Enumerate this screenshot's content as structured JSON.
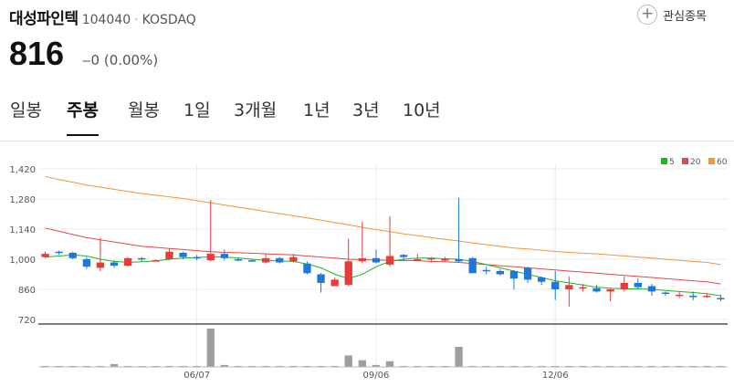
{
  "header": {
    "name": "대성파인텍",
    "code": "104040",
    "separator": "·",
    "market": "KOSDAQ",
    "favorite_label": "관심종목",
    "favorite_icon": "plus-circle-icon"
  },
  "quote": {
    "price": "816",
    "change_text": "‒0 (0.00%)"
  },
  "tabs": [
    {
      "label": "일봉",
      "active": false
    },
    {
      "label": "주봉",
      "active": true
    },
    {
      "label": "월봉",
      "active": false
    },
    {
      "label": "1일",
      "active": false
    },
    {
      "label": "3개월",
      "active": false
    },
    {
      "label": "1년",
      "active": false
    },
    {
      "label": "3년",
      "active": false
    },
    {
      "label": "10년",
      "active": false
    }
  ],
  "colors": {
    "up": "#e63c3c",
    "down": "#1e78d7",
    "ma5": "#22b522",
    "ma20": "#e64646",
    "ma60": "#f0963c",
    "volume": "#9e9e9e"
  },
  "chart_data": {
    "type": "candlestick",
    "y_ticks": [
      "1,420",
      "1,280",
      "1,140",
      "1,000",
      "860",
      "720"
    ],
    "y_tick_values": [
      1420,
      1280,
      1140,
      1000,
      860,
      720
    ],
    "ylim": [
      720,
      1420
    ],
    "x_labels": [
      "06/07",
      "09/06",
      "12/06"
    ],
    "x_label_index": [
      11,
      24,
      37
    ],
    "legend": [
      {
        "label": "5",
        "color": "#22b522"
      },
      {
        "label": "20",
        "color": "#e64646"
      },
      {
        "label": "60",
        "color": "#f0963c"
      }
    ],
    "candles": [
      [
        1010,
        1035,
        1005,
        1025
      ],
      [
        1035,
        1040,
        1020,
        1030
      ],
      [
        1030,
        1035,
        1000,
        1005
      ],
      [
        1000,
        1010,
        955,
        965
      ],
      [
        960,
        1100,
        945,
        985
      ],
      [
        985,
        995,
        960,
        970
      ],
      [
        970,
        1010,
        965,
        1005
      ],
      [
        1005,
        1010,
        990,
        1000
      ],
      [
        995,
        1000,
        990,
        995
      ],
      [
        1000,
        1050,
        995,
        1035
      ],
      [
        1030,
        1035,
        1000,
        1010
      ],
      [
        1010,
        1020,
        995,
        1005
      ],
      [
        995,
        1275,
        990,
        1025
      ],
      [
        1025,
        1045,
        995,
        1005
      ],
      [
        1000,
        1005,
        990,
        995
      ],
      [
        995,
        1000,
        990,
        990
      ],
      [
        985,
        1025,
        980,
        1005
      ],
      [
        1005,
        1010,
        980,
        985
      ],
      [
        990,
        1025,
        985,
        1010
      ],
      [
        980,
        990,
        930,
        935
      ],
      [
        930,
        935,
        845,
        890
      ],
      [
        875,
        915,
        875,
        905
      ],
      [
        880,
        1095,
        875,
        990
      ],
      [
        990,
        1175,
        980,
        1005
      ],
      [
        1005,
        1045,
        980,
        985
      ],
      [
        975,
        1200,
        965,
        1015
      ],
      [
        1020,
        1025,
        990,
        1010
      ],
      [
        1000,
        1025,
        990,
        1000
      ],
      [
        1000,
        1010,
        985,
        1005
      ],
      [
        1000,
        1010,
        990,
        1000
      ],
      [
        1000,
        1285,
        985,
        990
      ],
      [
        1005,
        1010,
        935,
        935
      ],
      [
        950,
        965,
        930,
        945
      ],
      [
        945,
        955,
        925,
        930
      ],
      [
        945,
        950,
        860,
        910
      ],
      [
        960,
        965,
        890,
        905
      ],
      [
        915,
        920,
        880,
        895
      ],
      [
        895,
        945,
        810,
        860
      ],
      [
        860,
        920,
        780,
        880
      ],
      [
        870,
        885,
        850,
        870
      ],
      [
        865,
        880,
        845,
        850
      ],
      [
        850,
        865,
        805,
        860
      ],
      [
        860,
        920,
        850,
        890
      ],
      [
        890,
        910,
        860,
        870
      ],
      [
        875,
        885,
        830,
        850
      ],
      [
        845,
        850,
        830,
        840
      ],
      [
        830,
        850,
        820,
        835
      ],
      [
        830,
        850,
        810,
        825
      ],
      [
        825,
        840,
        820,
        830
      ],
      [
        820,
        835,
        805,
        816
      ]
    ],
    "ma5": [
      1010,
      1015,
      1020,
      1015,
      1000,
      990,
      985,
      988,
      992,
      1000,
      1005,
      1008,
      1012,
      1010,
      1006,
      1000,
      995,
      992,
      990,
      978,
      960,
      930,
      910,
      930,
      965,
      990,
      1000,
      1005,
      1005,
      1002,
      1000,
      990,
      975,
      960,
      945,
      930,
      915,
      900,
      890,
      880,
      870,
      865,
      862,
      862,
      860,
      855,
      850,
      845,
      840,
      830
    ],
    "ma20": [
      1145,
      1130,
      1115,
      1100,
      1090,
      1080,
      1070,
      1060,
      1055,
      1050,
      1045,
      1040,
      1035,
      1032,
      1030,
      1028,
      1025,
      1022,
      1020,
      1015,
      1010,
      1005,
      1000,
      998,
      996,
      995,
      994,
      993,
      990,
      988,
      985,
      980,
      975,
      970,
      965,
      960,
      955,
      950,
      945,
      940,
      935,
      930,
      925,
      920,
      915,
      910,
      905,
      900,
      895,
      885
    ],
    "ma60": [
      1385,
      1370,
      1358,
      1345,
      1335,
      1325,
      1315,
      1305,
      1298,
      1290,
      1282,
      1272,
      1262,
      1252,
      1242,
      1232,
      1222,
      1212,
      1202,
      1192,
      1182,
      1170,
      1160,
      1148,
      1138,
      1128,
      1118,
      1110,
      1100,
      1092,
      1085,
      1075,
      1068,
      1060,
      1052,
      1048,
      1042,
      1036,
      1032,
      1028,
      1025,
      1020,
      1015,
      1010,
      1005,
      1000,
      995,
      990,
      985,
      975
    ],
    "volume": [
      1,
      1,
      0,
      0,
      1,
      3,
      1,
      0,
      0,
      1,
      1,
      1,
      40,
      2,
      1,
      1,
      1,
      1,
      1,
      1,
      1,
      1,
      12,
      7,
      2,
      6,
      1,
      1,
      1,
      1,
      21,
      1,
      1,
      1,
      1,
      1,
      1,
      1,
      1,
      1,
      1,
      1,
      1,
      1,
      1,
      1,
      1,
      1,
      1,
      1
    ]
  }
}
